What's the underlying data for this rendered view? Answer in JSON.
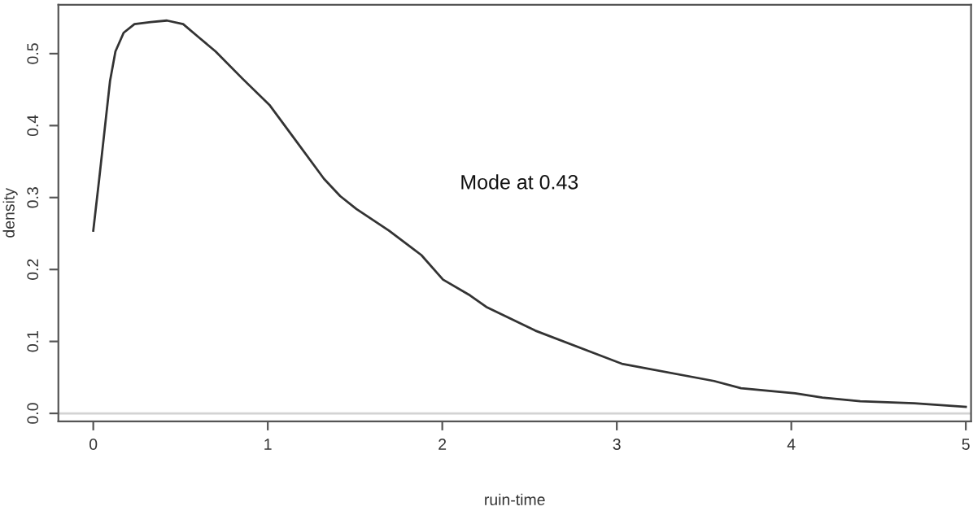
{
  "chart_data": {
    "type": "line",
    "xlabel": "ruin-time",
    "ylabel": "density",
    "annotations": [
      "Mode at 0.43"
    ],
    "x": [
      0,
      0.034,
      0.065,
      0.096,
      0.127,
      0.174,
      0.236,
      0.329,
      0.422,
      0.515,
      0.608,
      0.701,
      0.856,
      1.012,
      1.167,
      1.322,
      1.415,
      1.508,
      1.694,
      1.88,
      2.004,
      2.159,
      2.252,
      2.533,
      3.029,
      3.557,
      3.712,
      4.022,
      4.178,
      4.395,
      4.705,
      5.0
    ],
    "series": [
      {
        "color": "#333333",
        "values": [
          0.254,
          0.326,
          0.394,
          0.462,
          0.503,
          0.529,
          0.541,
          0.544,
          0.546,
          0.541,
          0.522,
          0.503,
          0.465,
          0.428,
          0.377,
          0.326,
          0.302,
          0.284,
          0.254,
          0.22,
          0.186,
          0.164,
          0.148,
          0.115,
          0.069,
          0.045,
          0.035,
          0.028,
          0.022,
          0.017,
          0.014,
          0.009
        ]
      }
    ],
    "ref_lines": [
      {
        "axis": "y",
        "value": 0,
        "color": "#d3d3d3"
      }
    ],
    "xlim": [
      -0.2,
      5.03
    ],
    "ylim": [
      -0.011,
      0.568
    ],
    "xticks": [
      0,
      1,
      2,
      3,
      4,
      5
    ],
    "yticks": [
      {
        "value": 0,
        "label": "0.0"
      },
      0.1,
      0.2,
      0.3,
      0.4,
      0.5
    ],
    "grid": false,
    "legend": false,
    "marker": "none",
    "line_style": "solid"
  }
}
